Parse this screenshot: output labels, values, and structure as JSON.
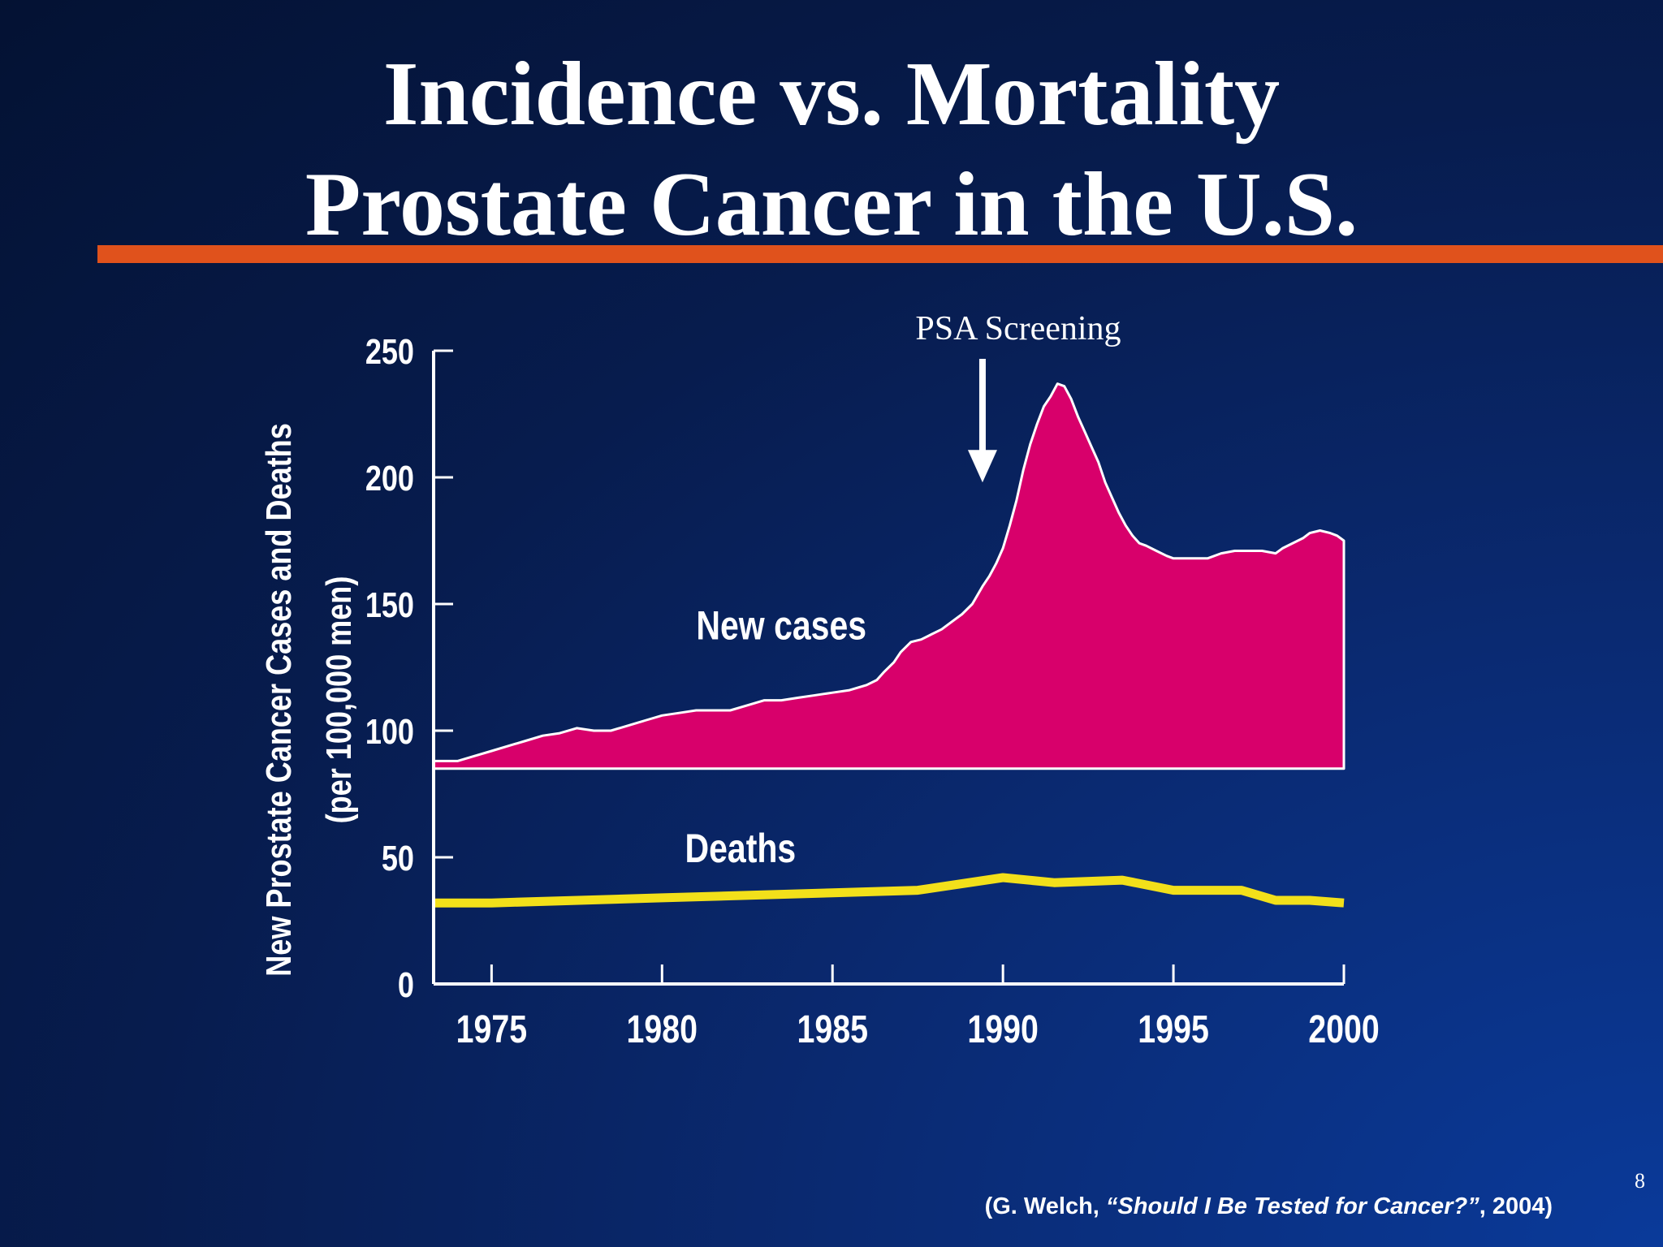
{
  "slide": {
    "title_line1": "Incidence vs. Mortality",
    "title_line2": "Prostate Cancer in the U.S.",
    "page_number": "8"
  },
  "colors": {
    "title_rule": "#e0521c",
    "new_cases_fill": "#d8006b",
    "deaths_line": "#f2e01a",
    "axis": "#ffffff"
  },
  "citation": {
    "prefix": "(G. Welch, ",
    "title": "“Should I Be Tested for Cancer?”",
    "suffix": ", 2004)"
  },
  "chart_data": {
    "type": "area",
    "ylabel_line1": "New Prostate Cancer Cases and Deaths",
    "ylabel_line2": "(per 100,000 men)",
    "ylim": [
      0,
      250
    ],
    "yticks": [
      0,
      50,
      100,
      150,
      200,
      250
    ],
    "xlim": [
      1973.3,
      2000
    ],
    "xticks": [
      1975,
      1980,
      1985,
      1990,
      1995,
      2000
    ],
    "grid": false,
    "series": [
      {
        "name": "New cases",
        "type": "area",
        "baseline": 85,
        "x": [
          1973.3,
          1974,
          1974.5,
          1975,
          1975.5,
          1976,
          1976.5,
          1977,
          1977.5,
          1978,
          1978.5,
          1979,
          1979.5,
          1980,
          1980.5,
          1981,
          1981.5,
          1982,
          1982.5,
          1983,
          1983.5,
          1984,
          1984.5,
          1985,
          1985.5,
          1986,
          1986.3,
          1986.5,
          1986.8,
          1987,
          1987.3,
          1987.6,
          1987.9,
          1988.2,
          1988.5,
          1988.8,
          1989.1,
          1989.4,
          1989.6,
          1989.8,
          1990,
          1990.2,
          1990.4,
          1990.6,
          1990.8,
          1991,
          1991.2,
          1991.4,
          1991.6,
          1991.8,
          1992,
          1992.2,
          1992.4,
          1992.6,
          1992.8,
          1993,
          1993.2,
          1993.4,
          1993.6,
          1993.8,
          1994,
          1994.2,
          1994.5,
          1994.8,
          1995,
          1995.3,
          1995.6,
          1996,
          1996.4,
          1996.8,
          1997.2,
          1997.6,
          1998,
          1998.2,
          1998.5,
          1998.8,
          1999,
          1999.3,
          1999.6,
          1999.8,
          2000
        ],
        "values": [
          88,
          88,
          90,
          92,
          94,
          96,
          98,
          99,
          101,
          100,
          100,
          102,
          104,
          106,
          107,
          108,
          108,
          108,
          110,
          112,
          112,
          113,
          114,
          115,
          116,
          118,
          120,
          123,
          127,
          131,
          135,
          136,
          138,
          140,
          143,
          146,
          150,
          157,
          161,
          166,
          172,
          181,
          191,
          203,
          213,
          221,
          228,
          232,
          237,
          236,
          231,
          224,
          218,
          212,
          206,
          198,
          192,
          186,
          181,
          177,
          174,
          173,
          171,
          169,
          168,
          168,
          168,
          168,
          170,
          171,
          171,
          171,
          170,
          172,
          174,
          176,
          178,
          179,
          178,
          177,
          175
        ]
      },
      {
        "name": "Deaths",
        "type": "line",
        "x": [
          1973.3,
          1975,
          1980,
          1985,
          1987.5,
          1990,
          1991.5,
          1993.5,
          1995,
          1997,
          1998,
          1999,
          2000
        ],
        "values": [
          32,
          32,
          34,
          36,
          37,
          42,
          40,
          41,
          37,
          37,
          33,
          33,
          32
        ]
      }
    ],
    "annotations": [
      {
        "text": "PSA Screening",
        "x": 1989.4,
        "arrow_to_y": 198
      },
      {
        "text": "New cases",
        "x": 1983.5,
        "y": 136
      },
      {
        "text": "Deaths",
        "x": 1982.3,
        "y": 48
      }
    ]
  }
}
